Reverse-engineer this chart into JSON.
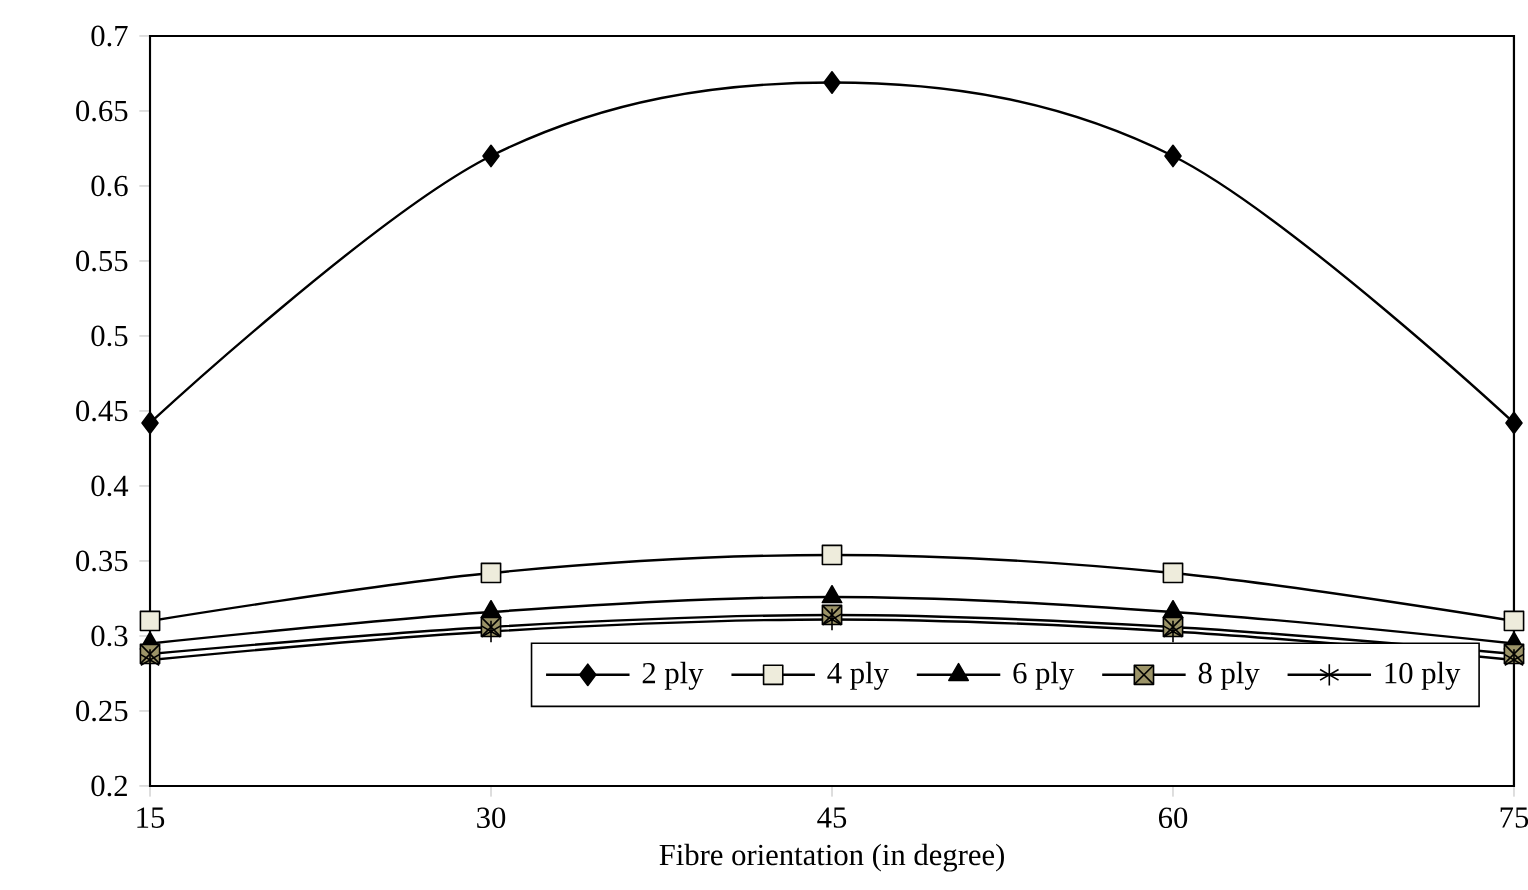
{
  "chart_data": {
    "type": "line",
    "xlabel": "Fibre orientation (in degree)",
    "x": [
      15,
      30,
      45,
      60,
      75
    ],
    "xlim": [
      15,
      75
    ],
    "xticks": [
      15,
      30,
      45,
      60,
      75
    ],
    "ylim": [
      0.2,
      0.7
    ],
    "yticks": [
      0.2,
      0.25,
      0.3,
      0.35,
      0.4,
      0.45,
      0.5,
      0.55,
      0.6,
      0.65,
      0.7
    ],
    "grid": false,
    "legend": "bottom right",
    "line_style": "solid",
    "series": [
      {
        "name": "2 ply",
        "color": "#000000",
        "marker": "diamond",
        "values": [
          0.442,
          0.62,
          0.669,
          0.62,
          0.442
        ]
      },
      {
        "name": "4 ply",
        "color": "#eeecdc",
        "marker": "square",
        "values": [
          0.31,
          0.342,
          0.354,
          0.342,
          0.31
        ]
      },
      {
        "name": "6 ply",
        "color": "#000000",
        "marker": "triangle",
        "values": [
          0.295,
          0.316,
          0.326,
          0.316,
          0.295
        ]
      },
      {
        "name": "8 ply",
        "color": "#9c9468",
        "marker": "square",
        "values": [
          0.288,
          0.306,
          0.314,
          0.306,
          0.288
        ]
      },
      {
        "name": "10 ply",
        "color": "#000000",
        "marker": "cross",
        "values": [
          0.284,
          0.303,
          0.311,
          0.303,
          0.284
        ]
      }
    ]
  }
}
